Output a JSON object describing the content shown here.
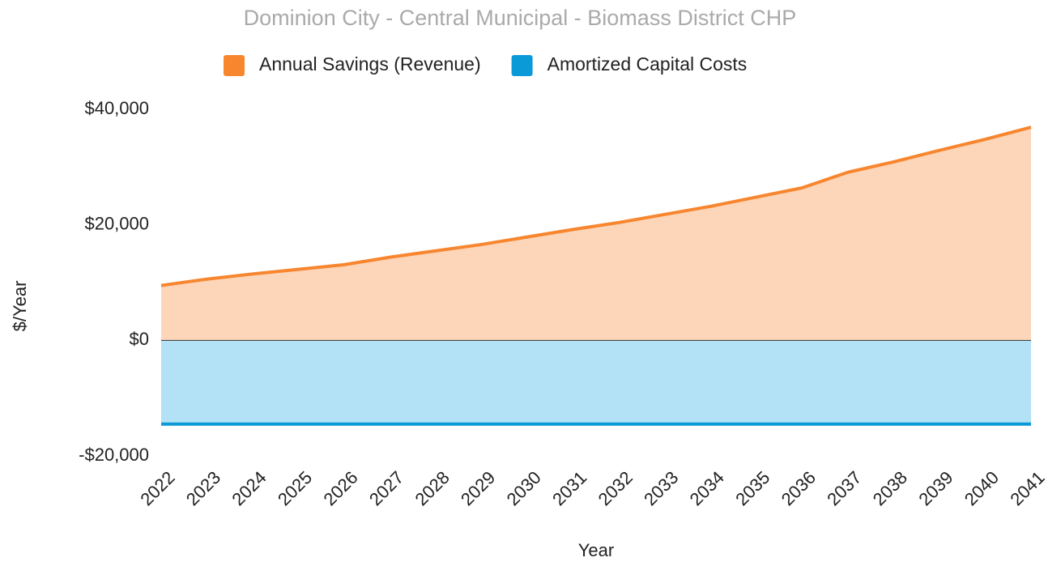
{
  "chart_data": {
    "type": "area",
    "title": "Dominion City - Central Municipal - Biomass District CHP",
    "x_label": "Year",
    "y_label": "$/Year",
    "categories": [
      "2022",
      "2023",
      "2024",
      "2025",
      "2026",
      "2027",
      "2028",
      "2029",
      "2030",
      "2031",
      "2032",
      "2033",
      "2034",
      "2035",
      "2036",
      "2037",
      "2038",
      "2039",
      "2040",
      "2041"
    ],
    "series": [
      {
        "name": "Annual Savings (Revenue)",
        "color": "#f7862f",
        "fill": "#fdd6ba",
        "values": [
          9500,
          10600,
          11500,
          12300,
          13100,
          14400,
          15500,
          16600,
          17900,
          19200,
          20400,
          21800,
          23200,
          24800,
          26400,
          29100,
          30900,
          32900,
          34800,
          36900
        ]
      },
      {
        "name": "Amortized Capital Costs",
        "color": "#0b9ad8",
        "fill": "#b3e1f5",
        "values": [
          -14500,
          -14500,
          -14500,
          -14500,
          -14500,
          -14500,
          -14500,
          -14500,
          -14500,
          -14500,
          -14500,
          -14500,
          -14500,
          -14500,
          -14500,
          -14500,
          -14500,
          -14500,
          -14500,
          -14500
        ]
      }
    ],
    "ylim": [
      -20000,
      40000
    ],
    "yticks": [
      {
        "value": -20000,
        "label": "-$20,000"
      },
      {
        "value": 0,
        "label": "$0"
      },
      {
        "value": 20000,
        "label": "$20,000"
      },
      {
        "value": 40000,
        "label": "$40,000"
      }
    ],
    "legend": "top"
  }
}
